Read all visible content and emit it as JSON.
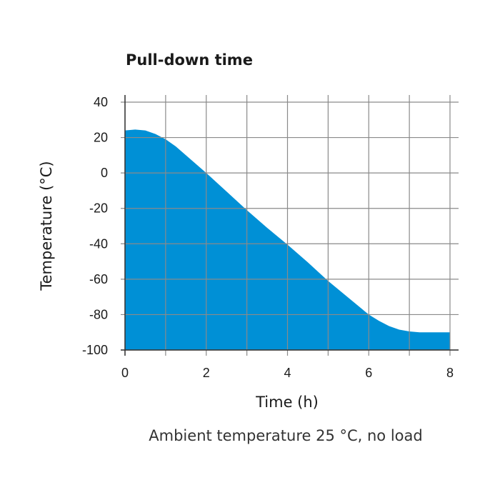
{
  "chart_data": {
    "type": "area",
    "title": "Pull-down time",
    "xlabel": "Time (h)",
    "ylabel": "Temperature (°C)",
    "caption": "Ambient temperature 25 °C, no load",
    "xlim": [
      0,
      8
    ],
    "ylim": [
      -100,
      40
    ],
    "xticks": [
      0,
      2,
      4,
      6,
      8
    ],
    "yticks": [
      40,
      20,
      0,
      -20,
      -40,
      -60,
      -80,
      -100
    ],
    "grid": true,
    "fill_color": "#0090d6",
    "series": [
      {
        "x": [
          0,
          0.25,
          0.5,
          0.75,
          1.0,
          1.25,
          1.5,
          1.75,
          2.0,
          2.5,
          3.0,
          3.5,
          4.0,
          4.5,
          5.0,
          5.5,
          6.0,
          6.25,
          6.5,
          6.75,
          7.0,
          7.25,
          7.5,
          8.0
        ],
        "y": [
          24,
          24.5,
          24,
          22,
          19,
          15,
          10,
          5,
          0,
          -10.5,
          -21,
          -31,
          -40.5,
          -50.5,
          -61,
          -70.5,
          -80,
          -83.5,
          -86.5,
          -88.5,
          -89.5,
          -90,
          -90,
          -90
        ]
      }
    ]
  }
}
